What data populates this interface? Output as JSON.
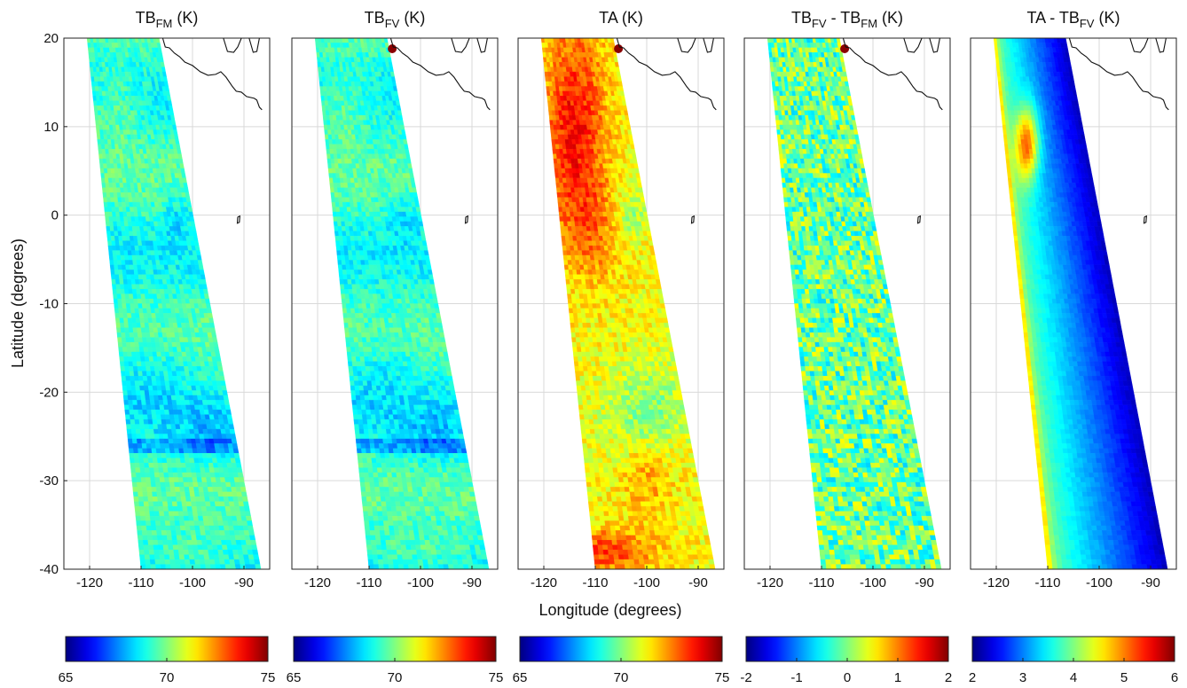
{
  "figure": {
    "ylabel": "Latitude (degrees)",
    "xlabel": "Longitude (degrees)"
  },
  "axes": {
    "x_ticks": [
      "-120",
      "-110",
      "-100",
      "-90"
    ],
    "x_tick_values": [
      -120,
      -110,
      -100,
      -90
    ],
    "y_ticks": [
      "20",
      "10",
      "0",
      "-10",
      "-20",
      "-30",
      "-40"
    ],
    "y_tick_values": [
      20,
      10,
      0,
      -10,
      -20,
      -30,
      -40
    ],
    "xlim": [
      -125,
      -85
    ],
    "ylim": [
      -40,
      20
    ],
    "grid": true
  },
  "colors": {
    "colormap": "jet",
    "coastline": "#111111",
    "grid": "#d9d9d9"
  },
  "chart_data": [
    {
      "type": "heatmap",
      "title_main": "TB",
      "title_sub": "FM",
      "title_suffix": " (K)",
      "clim": [
        65,
        75
      ],
      "colorbar_ticks": [
        "65",
        "70",
        "75"
      ],
      "description_values": "mostly 67-70 K, minima near 66 K around 0°N -103°E and -25°N -95°E"
    },
    {
      "type": "heatmap",
      "title_main": "TB",
      "title_sub": "FV",
      "title_suffix": " (K)",
      "clim": [
        65,
        75
      ],
      "colorbar_ticks": [
        "65",
        "70",
        "75"
      ]
    },
    {
      "type": "heatmap",
      "title_main": "TA (K)",
      "title_sub": "",
      "title_suffix": "",
      "clim": [
        65,
        75
      ],
      "colorbar_ticks": [
        "65",
        "70",
        "75"
      ]
    },
    {
      "type": "heatmap",
      "title_main": "TB",
      "title_sub": "FV",
      "title_mid": " - TB",
      "title_sub2": "FM",
      "title_suffix": " (K)",
      "clim": [
        -2,
        2
      ],
      "colorbar_ticks": [
        "-2",
        "-1",
        "0",
        "1",
        "2"
      ]
    },
    {
      "type": "heatmap",
      "title_main": "TA - TB",
      "title_sub": "FV",
      "title_suffix": " (K)",
      "clim": [
        2,
        6
      ],
      "colorbar_ticks": [
        "2",
        "3",
        "4",
        "5",
        "6"
      ]
    }
  ]
}
